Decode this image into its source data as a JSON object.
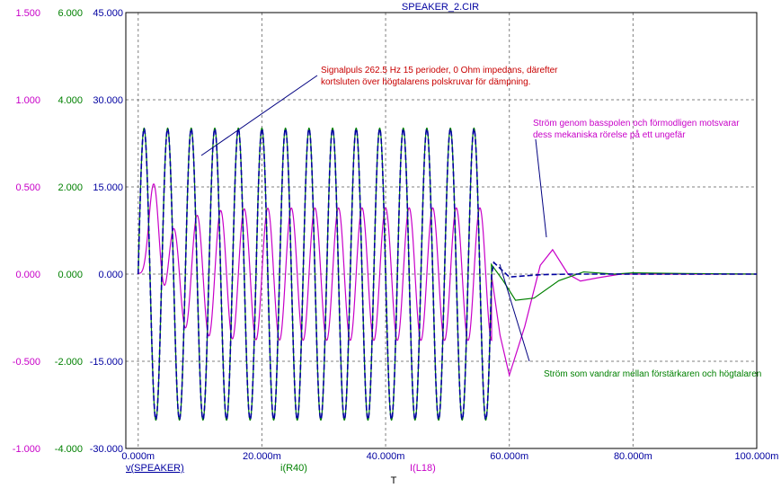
{
  "colors": {
    "axis_left": "#c800c8",
    "axis_mid": "#008000",
    "axis_right": "#0000a0",
    "title": "#0000a0",
    "plot_border": "#000000",
    "grid": "#808080",
    "ann_red": "#c80000",
    "ann_magenta": "#c800c8",
    "ann_green": "#008000",
    "zero_line": "#0000a0"
  },
  "chart_data": {
    "type": "line",
    "title": "SPEAKER_2.CIR",
    "xlabel": "T",
    "xlim": [
      -0.002,
      0.1
    ],
    "x_ticks": [
      0,
      0.02,
      0.04,
      0.06,
      0.08,
      0.1
    ],
    "x_tick_labels": [
      "0.000m",
      "20.000m",
      "40.000m",
      "60.000m",
      "80.000m",
      "100.000m"
    ],
    "grid": true,
    "axes": [
      {
        "id": "left",
        "color": "#c800c8",
        "range": [
          -1.0,
          1.5
        ],
        "ticks": [
          1.5,
          1.0,
          0.5,
          0.0,
          -0.5,
          -1.0
        ],
        "tick_labels": [
          "1.500",
          "1.000",
          "0.500",
          "0.000",
          "-0.500",
          "-1.000"
        ]
      },
      {
        "id": "mid",
        "color": "#008000",
        "range": [
          -4.0,
          6.0
        ],
        "ticks": [
          6,
          4,
          2,
          0,
          -2,
          -4
        ],
        "tick_labels": [
          "6.000",
          "4.000",
          "2.000",
          "0.000",
          "-2.000",
          "-4.000"
        ]
      },
      {
        "id": "right",
        "color": "#0000a0",
        "range": [
          -30,
          45
        ],
        "ticks": [
          45,
          30,
          15,
          0,
          -15,
          -30
        ],
        "tick_labels": [
          "45.000",
          "30.000",
          "15.000",
          "0.000",
          "-15.000",
          "-30.000"
        ]
      }
    ],
    "series": [
      {
        "name": "v(SPEAKER)",
        "axis": "right",
        "color": "#0000a0",
        "dashed": true,
        "freq_hz": 262.5,
        "cycles": 15,
        "amplitude": 25.0,
        "tail_points": [
          [
            0.0575,
            2
          ],
          [
            0.06,
            -0.5
          ],
          [
            0.065,
            -0.1
          ],
          [
            0.07,
            0
          ],
          [
            0.1,
            0
          ]
        ]
      },
      {
        "name": "i(R40)",
        "axis": "mid",
        "color": "#008000",
        "dashed": false,
        "freq_hz": 262.5,
        "cycles": 15,
        "amplitude": 3.35,
        "tail_points": [
          [
            0.0571,
            0.22
          ],
          [
            0.059,
            -0.15
          ],
          [
            0.061,
            -0.6
          ],
          [
            0.064,
            -0.55
          ],
          [
            0.068,
            -0.15
          ],
          [
            0.072,
            0.05
          ],
          [
            0.077,
            0.0
          ],
          [
            0.08,
            0.03
          ],
          [
            0.084,
            0.02
          ],
          [
            0.1,
            0.0
          ]
        ]
      },
      {
        "name": "I(L18)",
        "axis": "left",
        "color": "#c800c8",
        "dashed": false,
        "freq_hz": 262.5,
        "cycles": 15,
        "amplitude": 0.38,
        "startup_peak": 0.85,
        "tail_points": [
          [
            0.0571,
            0.0
          ],
          [
            0.0585,
            -0.35
          ],
          [
            0.06,
            -0.58
          ],
          [
            0.0625,
            -0.3
          ],
          [
            0.065,
            0.05
          ],
          [
            0.067,
            0.14
          ],
          [
            0.0695,
            0.0
          ],
          [
            0.0715,
            -0.04
          ],
          [
            0.0745,
            -0.02
          ],
          [
            0.078,
            0.0
          ],
          [
            0.1,
            0.0
          ]
        ]
      }
    ],
    "legend": [
      "v(SPEAKER)",
      "i(R40)",
      "I(L18)"
    ],
    "annotations": [
      {
        "id": "red",
        "color": "#c80000",
        "lines": [
          "Signalpuls 262.5 Hz 15 perioder, 0 Ohm impedans, därefter",
          "kortsluten över högtalarens polskruvar för dämpning."
        ]
      },
      {
        "id": "magenta",
        "color": "#c800c8",
        "lines": [
          "Ström genom basspolen och förmodligen motsvarar",
          "dess mekaniska rörelse på ett ungefär"
        ]
      },
      {
        "id": "green",
        "color": "#008000",
        "lines": [
          "Ström som vandrar mellan förstärkaren och högtalaren"
        ]
      }
    ]
  }
}
